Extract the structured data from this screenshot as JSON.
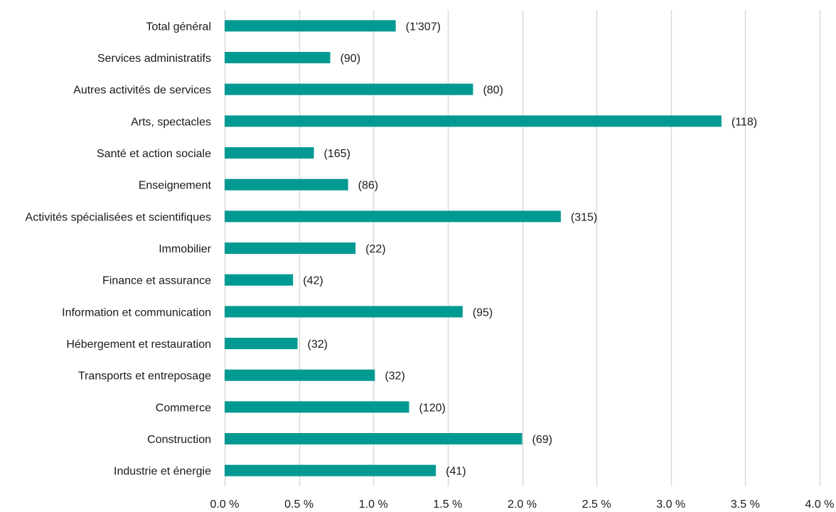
{
  "chart_data": {
    "type": "bar",
    "orientation": "horizontal",
    "title": "",
    "xlabel": "",
    "ylabel": "",
    "xlim": [
      0,
      4.0
    ],
    "grid": "vertical",
    "bar_color": "#009A93",
    "grid_color": "#d9d9d9",
    "categories": [
      "Total général",
      "Services administratifs",
      "Autres activités de services",
      "Arts, spectacles",
      "Santé et action sociale",
      "Enseignement",
      "Activités spécialisées et scientifiques",
      "Immobilier",
      "Finance et assurance",
      "Information et communication",
      "Hébergement et restauration",
      "Transports et entreposage",
      "Commerce",
      "Construction",
      "Industrie et énergie"
    ],
    "values": [
      1.15,
      0.71,
      1.67,
      3.34,
      0.6,
      0.83,
      2.26,
      0.88,
      0.46,
      1.6,
      0.49,
      1.01,
      1.24,
      2.0,
      1.42
    ],
    "data_labels": [
      "(1'307)",
      "(90)",
      "(80)",
      "(118)",
      "(165)",
      "(86)",
      "(315)",
      "(22)",
      "(42)",
      "(95)",
      "(32)",
      "(32)",
      "(120)",
      "(69)",
      "(41)"
    ],
    "x_ticks": [
      0,
      0.5,
      1.0,
      1.5,
      2.0,
      2.5,
      3.0,
      3.5,
      4.0
    ],
    "x_tick_labels": [
      "0.0 %",
      "0.5 %",
      "1.0 %",
      "1.5 %",
      "2.0 %",
      "2.5 %",
      "3.0 %",
      "3.5 %",
      "4.0 %"
    ]
  }
}
